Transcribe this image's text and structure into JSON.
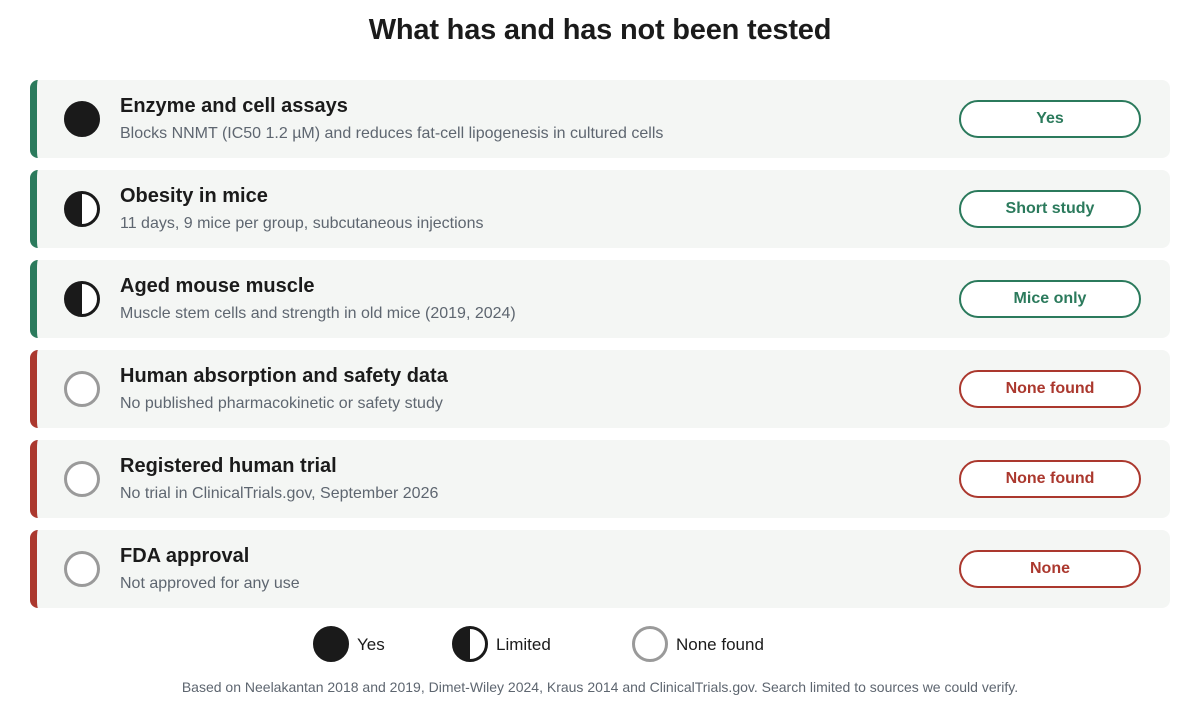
{
  "title": "What has and has not been tested",
  "rows": [
    {
      "name": "Enzyme and cell assays",
      "description": "Blocks NNMT (IC50 1.2 µM) and reduces fat-cell lipogenesis in cultured cells",
      "status": "Yes",
      "level": "full",
      "tone": "positive"
    },
    {
      "name": "Obesity in mice",
      "description": "11 days, 9 mice per group, subcutaneous injections",
      "status": "Short study",
      "level": "half",
      "tone": "positive"
    },
    {
      "name": "Aged mouse muscle",
      "description": "Muscle stem cells and strength in old mice (2019, 2024)",
      "status": "Mice only",
      "level": "half",
      "tone": "positive"
    },
    {
      "name": "Human absorption and safety data",
      "description": "No published pharmacokinetic or safety study",
      "status": "None found",
      "level": "empty",
      "tone": "negative"
    },
    {
      "name": "Registered human trial",
      "description": "No trial in ClinicalTrials.gov, September 2026",
      "status": "None found",
      "level": "empty",
      "tone": "negative"
    },
    {
      "name": "FDA approval",
      "description": "Not approved for any use",
      "status": "None",
      "level": "empty",
      "tone": "negative"
    }
  ],
  "legend": [
    {
      "label": "Yes",
      "level": "full"
    },
    {
      "label": "Limited",
      "level": "half"
    },
    {
      "label": "None found",
      "level": "empty"
    }
  ],
  "footnote": "Based on Neelakantan 2018 and 2019, Dimet-Wiley 2024, Kraus 2014 and ClinicalTrials.gov. Search limited to sources we could verify.",
  "colors": {
    "positive": "#2b7a5c",
    "negative": "#ab382e",
    "dot_dark": "#1a1a1a",
    "dot_empty": "#9a9a9a",
    "row_background": "#f4f6f4"
  }
}
